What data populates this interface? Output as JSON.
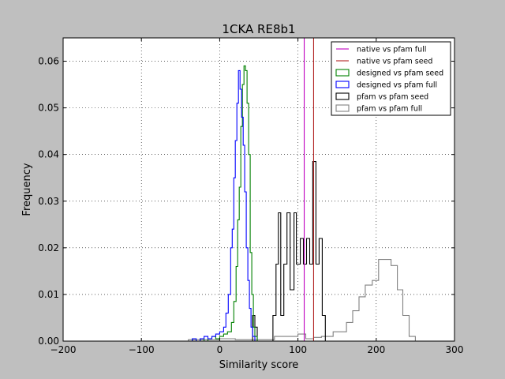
{
  "chart_data": {
    "type": "step-histogram",
    "title": "1CKA RE8b1",
    "xlabel": "Similarity score",
    "ylabel": "Frequency",
    "xlim": [
      -200,
      300
    ],
    "ylim": [
      0,
      0.065
    ],
    "x_ticks": [
      -200,
      -100,
      0,
      100,
      200,
      300
    ],
    "x_tick_labels": [
      "−200",
      "−100",
      "0",
      "100",
      "200",
      "300"
    ],
    "y_ticks": [
      0,
      0.01,
      0.02,
      0.03,
      0.04,
      0.05,
      0.06
    ],
    "y_tick_labels": [
      "0.00",
      "0.01",
      "0.02",
      "0.03",
      "0.04",
      "0.05",
      "0.06"
    ],
    "grid": true,
    "legend_position": "top-right",
    "vlines": [
      {
        "name": "native vs pfam full",
        "x": 108,
        "color": "#bf00bf"
      },
      {
        "name": "native vs pfam seed",
        "x": 120,
        "color": "#b22222"
      }
    ],
    "series": [
      {
        "name": "designed vs pfam seed",
        "color": "#008000",
        "points": [
          [
            -40,
            0
          ],
          [
            -35,
            0.0005
          ],
          [
            -30,
            0
          ],
          [
            -25,
            0.0005
          ],
          [
            -20,
            0
          ],
          [
            -15,
            0.0005
          ],
          [
            -10,
            0.001
          ],
          [
            -5,
            0.0005
          ],
          [
            0,
            0.001
          ],
          [
            5,
            0.0015
          ],
          [
            10,
            0.002
          ],
          [
            15,
            0.004
          ],
          [
            18,
            0.0085
          ],
          [
            21,
            0.016
          ],
          [
            23,
            0.026
          ],
          [
            25,
            0.033
          ],
          [
            27,
            0.046
          ],
          [
            29,
            0.055
          ],
          [
            31,
            0.059
          ],
          [
            33,
            0.058
          ],
          [
            35,
            0.051
          ],
          [
            37,
            0.04
          ],
          [
            39,
            0.019
          ],
          [
            41,
            0.01
          ],
          [
            43,
            0.003
          ],
          [
            45,
            0.001
          ],
          [
            48,
            0
          ]
        ],
        "end": 48
      },
      {
        "name": "designed vs pfam full",
        "color": "#0000ff",
        "points": [
          [
            -40,
            0
          ],
          [
            -35,
            0.0005
          ],
          [
            -30,
            0
          ],
          [
            -25,
            0.0005
          ],
          [
            -20,
            0.001
          ],
          [
            -15,
            0.0005
          ],
          [
            -10,
            0.001
          ],
          [
            -5,
            0.0015
          ],
          [
            0,
            0.002
          ],
          [
            5,
            0.003
          ],
          [
            8,
            0.006
          ],
          [
            11,
            0.01
          ],
          [
            14,
            0.02
          ],
          [
            16,
            0.024
          ],
          [
            18,
            0.035
          ],
          [
            20,
            0.043
          ],
          [
            22,
            0.051
          ],
          [
            24,
            0.058
          ],
          [
            26,
            0.054
          ],
          [
            28,
            0.048
          ],
          [
            30,
            0.042
          ],
          [
            32,
            0.032
          ],
          [
            34,
            0.02
          ],
          [
            36,
            0.013
          ],
          [
            38,
            0.007
          ],
          [
            40,
            0.003
          ],
          [
            42,
            0.001
          ],
          [
            45,
            0
          ]
        ],
        "end": 45
      },
      {
        "name": "pfam vs pfam seed",
        "color": "#000000",
        "points": [
          [
            42,
            0.0055
          ],
          [
            45,
            0.003
          ],
          [
            48,
            0
          ],
          [
            68,
            0.0055
          ],
          [
            72,
            0.0165
          ],
          [
            75,
            0.0275
          ],
          [
            78,
            0.0055
          ],
          [
            82,
            0.0165
          ],
          [
            86,
            0.0275
          ],
          [
            90,
            0.011
          ],
          [
            95,
            0.0275
          ],
          [
            98,
            0.0165
          ],
          [
            103,
            0.022
          ],
          [
            107,
            0.0165
          ],
          [
            111,
            0.022
          ],
          [
            115,
            0.0165
          ],
          [
            119,
            0.0385
          ],
          [
            123,
            0.0165
          ],
          [
            127,
            0.022
          ],
          [
            131,
            0.0055
          ]
        ],
        "end": 135
      },
      {
        "name": "pfam vs pfam full",
        "color": "#808080",
        "points": [
          [
            -180,
            0
          ],
          [
            -40,
            0.0003
          ],
          [
            0,
            0.0005
          ],
          [
            20,
            0.0003
          ],
          [
            70,
            0.001
          ],
          [
            100,
            0.0015
          ],
          [
            110,
            0.0005
          ],
          [
            120,
            0.0008
          ],
          [
            130,
            0.001
          ],
          [
            145,
            0.002
          ],
          [
            162,
            0.004
          ],
          [
            170,
            0.0065
          ],
          [
            178,
            0.0095
          ],
          [
            186,
            0.012
          ],
          [
            195,
            0.013
          ],
          [
            203,
            0.0175
          ],
          [
            219,
            0.0162
          ],
          [
            227,
            0.011
          ],
          [
            234,
            0.0055
          ],
          [
            242,
            0.001
          ]
        ],
        "end": 250
      }
    ]
  }
}
